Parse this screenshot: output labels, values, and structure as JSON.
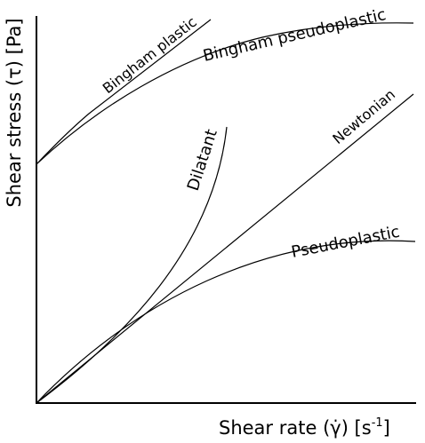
{
  "chart_data": {
    "type": "line",
    "title": "",
    "xlabel": "Shear rate (γ̇) [s",
    "xlabel_sup": "-1",
    "xlabel_end": "]",
    "ylabel": "Shear stress (τ) [Pa]",
    "grid": false,
    "legend": "none",
    "series": [
      {
        "name": "Bingham plastic",
        "shape": "linear with yield stress"
      },
      {
        "name": "Bingham pseudoplastic",
        "shape": "concave with yield stress"
      },
      {
        "name": "Dilatant",
        "shape": "convex through origin"
      },
      {
        "name": "Newtonian",
        "shape": "linear through origin"
      },
      {
        "name": "Pseudoplastic",
        "shape": "concave through origin"
      }
    ]
  }
}
